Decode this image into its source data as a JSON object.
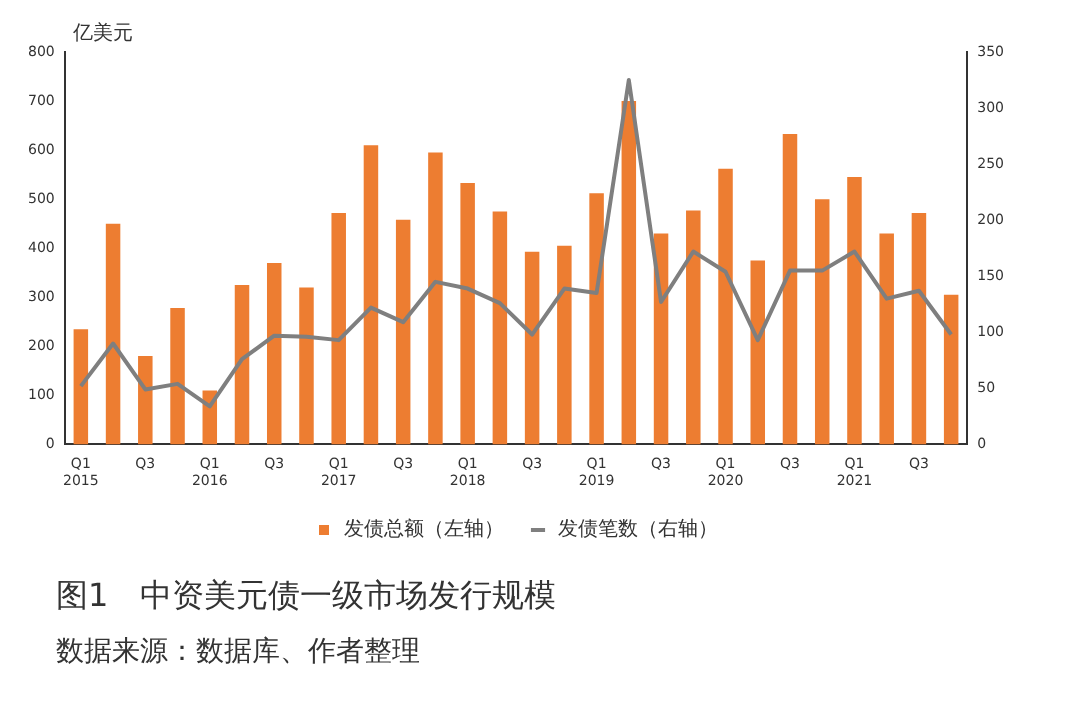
{
  "chart_data": {
    "type": "bar",
    "title": "图1　中资美元债一级市场发行规模",
    "ylabel": "亿美元",
    "annotations": [
      "数据来源：数据库、作者整理"
    ],
    "categories": [
      "Q1\n2015",
      null,
      "Q3",
      null,
      "Q1\n2016",
      null,
      "Q3",
      null,
      "Q1\n2017",
      null,
      "Q3",
      null,
      "Q1\n2018",
      null,
      "Q3",
      null,
      "Q1\n2019",
      null,
      "Q3",
      null,
      "Q1\n2020",
      null,
      "Q3",
      null,
      "Q1\n2021",
      null,
      "Q3",
      null
    ],
    "series": [
      {
        "name": "发债总额（左轴）",
        "color": "#ed7d31",
        "values": [
          235,
          450,
          180,
          278,
          110,
          325,
          370,
          320,
          472,
          610,
          458,
          595,
          533,
          475,
          393,
          405,
          512,
          700,
          430,
          477,
          562,
          375,
          633,
          500,
          545,
          430,
          472,
          305
        ]
      },
      {
        "name": "发债笔数（右轴）",
        "type": "line",
        "axis": "y2",
        "color": "#7f7f7f",
        "values": [
          52,
          90,
          49,
          54,
          34,
          76,
          97,
          96,
          93,
          122,
          109,
          145,
          139,
          126,
          98,
          139,
          135,
          325,
          127,
          172,
          154,
          93,
          155,
          155,
          172,
          130,
          137,
          98
        ]
      }
    ],
    "ylim": [
      0,
      800
    ],
    "yticks": [
      0,
      100,
      200,
      300,
      400,
      500,
      600,
      700,
      800
    ],
    "y2lim": [
      0,
      350
    ],
    "y2ticks": [
      0,
      50,
      100,
      150,
      200,
      250,
      300,
      350
    ],
    "legend": "bottom",
    "grid": false,
    "marker": "none"
  }
}
